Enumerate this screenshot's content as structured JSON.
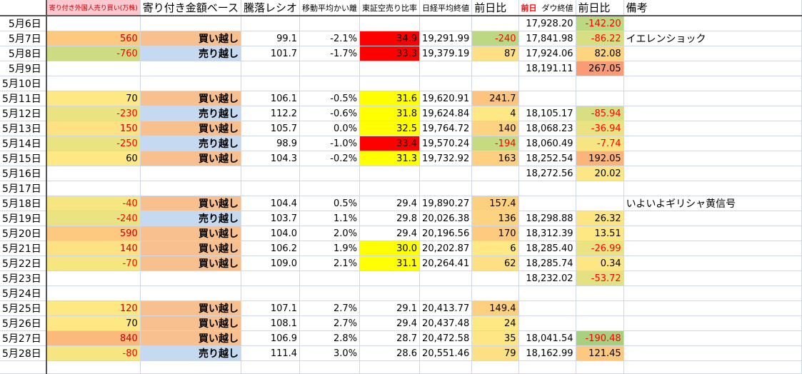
{
  "headers": {
    "a": "寄り付き外国人売り買い(万株)",
    "b": "寄り付き金額ベース",
    "c": "騰落レシオ",
    "d": "移動平均かい離",
    "e": "東証空売り比率",
    "f": "日経平均終値",
    "g": "前日比",
    "h_prefix": "前日",
    "h": "ダウ終値",
    "i": "前日比",
    "j": "備考"
  },
  "rows": [
    {
      "date": "5月6日",
      "h": "17,928.20",
      "i": {
        "v": "-142.20",
        "bg": "#bcd882",
        "c": "#ff0000"
      }
    },
    {
      "date": "5月7日",
      "a": {
        "v": "560",
        "bg": "#fdc980",
        "c": "#c00000"
      },
      "b": {
        "v": "買い越し",
        "bg": "#f9c08f"
      },
      "c": "99.1",
      "d": "-2.1%",
      "e": {
        "v": "34.9",
        "bg": "#ff0000"
      },
      "f": "19,291.99",
      "g": {
        "v": "-240",
        "bg": "#bcd882",
        "c": "#ff0000"
      },
      "h": "17,841.98",
      "i": {
        "v": "-86.22",
        "bg": "#d8df82",
        "c": "#ff0000"
      },
      "j": "イエレンショック"
    },
    {
      "date": "5月8日",
      "a": {
        "v": "-760",
        "bg": "#cddc82",
        "c": "#ff0000"
      },
      "b": {
        "v": "売り越し",
        "bg": "#c5d9f1"
      },
      "c": "101.7",
      "d": "-1.7%",
      "e": {
        "v": "33.3",
        "bg": "#ff0000"
      },
      "f": "19,379.19",
      "g": {
        "v": "87",
        "bg": "#fde083"
      },
      "h": "17,924.06",
      "i": {
        "v": "82.08",
        "bg": "#fdd581"
      }
    },
    {
      "date": "5月9日",
      "h": "18,191.11",
      "i": {
        "v": "267.05",
        "bg": "#f99c76"
      }
    },
    {
      "date": "5月10日"
    },
    {
      "date": "5月11日",
      "a": {
        "v": "70",
        "bg": "#fde883",
        "c": "#000"
      },
      "b": {
        "v": "買い越し",
        "bg": "#f9c08f"
      },
      "c": "106.1",
      "d": "-0.5%",
      "e": {
        "v": "31.6",
        "bg": "#ffff00"
      },
      "f": "19,620.91",
      "g": {
        "v": "241.7",
        "bg": "#fdc47f"
      }
    },
    {
      "date": "5月12日",
      "a": {
        "v": "-230",
        "bg": "#eae381",
        "c": "#ff0000"
      },
      "b": {
        "v": "売り越し",
        "bg": "#c5d9f1"
      },
      "c": "112.2",
      "d": "-0.6%",
      "e": {
        "v": "31.8",
        "bg": "#ffff00"
      },
      "f": "19,624.84",
      "g": {
        "v": "4",
        "bg": "#fde883"
      },
      "h": "18,105.17",
      "i": {
        "v": "-85.94",
        "bg": "#d8df82",
        "c": "#ff0000"
      }
    },
    {
      "date": "5月13日",
      "a": {
        "v": "150",
        "bg": "#fde283",
        "c": "#c00000"
      },
      "b": {
        "v": "買い越し",
        "bg": "#f9c08f"
      },
      "c": "105.7",
      "d": "0.0%",
      "e": {
        "v": "32.5",
        "bg": "#ffff00"
      },
      "f": "19,764.72",
      "g": {
        "v": "140",
        "bg": "#fdd381"
      },
      "h": "18,068.23",
      "i": {
        "v": "-36.94",
        "bg": "#ebe282",
        "c": "#ff0000"
      }
    },
    {
      "date": "5月14日",
      "a": {
        "v": "-250",
        "bg": "#eae381",
        "c": "#ff0000"
      },
      "b": {
        "v": "売り越し",
        "bg": "#c5d9f1"
      },
      "c": "98.9",
      "d": "-1.0%",
      "e": {
        "v": "33.4",
        "bg": "#ff0000"
      },
      "f": "19,570.24",
      "g": {
        "v": "-194",
        "bg": "#c6da82",
        "c": "#ff0000"
      },
      "h": "18,060.49",
      "i": {
        "v": "-7.74",
        "bg": "#f7e583",
        "c": "#ff0000"
      }
    },
    {
      "date": "5月15日",
      "a": {
        "v": "60",
        "bg": "#fde883",
        "c": "#000"
      },
      "b": {
        "v": "買い越し",
        "bg": "#f9c08f"
      },
      "c": "104.3",
      "d": "-0.2%",
      "e": {
        "v": "31.3",
        "bg": "#ffff00"
      },
      "f": "19,732.92",
      "g": {
        "v": "163",
        "bg": "#fdcf80"
      },
      "h": "18,252.54",
      "i": {
        "v": "192.05",
        "bg": "#fbb57a"
      }
    },
    {
      "date": "5月16日",
      "h": "18,272.56",
      "i": {
        "v": "20.02",
        "bg": "#fde784"
      }
    },
    {
      "date": "5月17日"
    },
    {
      "date": "5月18日",
      "a": {
        "v": "-40",
        "bg": "#f6e682",
        "c": "#ff0000"
      },
      "b": {
        "v": "買い越し",
        "bg": "#f9c08f"
      },
      "c": "104.4",
      "d": "0.5%",
      "e": {
        "v": "29.4"
      },
      "f": "19,890.27",
      "g": {
        "v": "157.4",
        "bg": "#fdd07f"
      },
      "j": "いよいよギリシャ黄信号"
    },
    {
      "date": "5月19日",
      "a": {
        "v": "-240",
        "bg": "#eae381",
        "c": "#ff0000"
      },
      "b": {
        "v": "売り越し",
        "bg": "#c5d9f1"
      },
      "c": "103.7",
      "d": "1.1%",
      "e": {
        "v": "29.8"
      },
      "f": "20,026.38",
      "g": {
        "v": "136",
        "bg": "#fdd381"
      },
      "h": "18,298.88",
      "i": {
        "v": "26.32",
        "bg": "#fde583"
      }
    },
    {
      "date": "5月20日",
      "a": {
        "v": "590",
        "bg": "#fdc980",
        "c": "#c00000"
      },
      "b": {
        "v": "買い越し",
        "bg": "#f9c08f"
      },
      "c": "104.0",
      "d": "2.0%",
      "e": {
        "v": "29.4"
      },
      "f": "20,196.56",
      "g": {
        "v": "170",
        "bg": "#fdcb80"
      },
      "h": "18,312.39",
      "i": {
        "v": "13.51",
        "bg": "#fde883"
      }
    },
    {
      "date": "5月21日",
      "a": {
        "v": "140",
        "bg": "#fde283",
        "c": "#c00000"
      },
      "b": {
        "v": "買い越し",
        "bg": "#f9c08f"
      },
      "c": "106.2",
      "d": "1.9%",
      "e": {
        "v": "30.0",
        "bg": "#ffff00"
      },
      "f": "20,202.87",
      "g": {
        "v": "6",
        "bg": "#fde883"
      },
      "h": "18,285.40",
      "i": {
        "v": "-26.99",
        "bg": "#ebe282",
        "c": "#ff0000"
      }
    },
    {
      "date": "5月22日",
      "a": {
        "v": "-70",
        "bg": "#f6e682",
        "c": "#ff0000"
      },
      "b": {
        "v": "買い越し",
        "bg": "#f9c08f"
      },
      "c": "109.0",
      "d": "2.1%",
      "e": {
        "v": "31.1",
        "bg": "#ffff00"
      },
      "f": "20,264.41",
      "g": {
        "v": "62",
        "bg": "#fde083"
      },
      "h": "18,285.74",
      "i": {
        "v": "0.34",
        "bg": "#fde784"
      }
    },
    {
      "date": "5月23日",
      "h": "18,232.02",
      "i": {
        "v": "-53.72",
        "bg": "#e3e182",
        "c": "#ff0000"
      }
    },
    {
      "date": "5月24日"
    },
    {
      "date": "5月25日",
      "a": {
        "v": "120",
        "bg": "#fde883",
        "c": "#c00000"
      },
      "b": {
        "v": "買い越し",
        "bg": "#f9c08f"
      },
      "c": "107.1",
      "d": "2.7%",
      "e": {
        "v": "29.1"
      },
      "f": "20,413.77",
      "g": {
        "v": "149.4",
        "bg": "#fdd07f"
      }
    },
    {
      "date": "5月26日",
      "a": {
        "v": "70",
        "bg": "#fde883",
        "c": "#000"
      },
      "b": {
        "v": "買い越し",
        "bg": "#f9c08f"
      },
      "c": "108.1",
      "d": "2.7%",
      "e": {
        "v": "29.4"
      },
      "f": "20,437.48",
      "g": {
        "v": "24",
        "bg": "#fde883"
      }
    },
    {
      "date": "5月27日",
      "a": {
        "v": "840",
        "bg": "#fbb97b",
        "c": "#c00000"
      },
      "b": {
        "v": "買い越し",
        "bg": "#f9c08f"
      },
      "c": "106.9",
      "d": "2.8%",
      "e": {
        "v": "28.7"
      },
      "f": "20,472.58",
      "g": {
        "v": "35",
        "bg": "#fde683"
      },
      "h": "18,041.54",
      "i": {
        "v": "-190.48",
        "bg": "#a9d07e",
        "c": "#ff0000"
      }
    },
    {
      "date": "5月28日",
      "a": {
        "v": "-80",
        "bg": "#f6e682",
        "c": "#ff0000"
      },
      "b": {
        "v": "売り越し",
        "bg": "#c5d9f1"
      },
      "c": "111.4",
      "d": "3.0%",
      "e": {
        "v": "28.6"
      },
      "f": "20,551.46",
      "g": {
        "v": "79",
        "bg": "#fde083"
      },
      "h": "18,162.99",
      "i": {
        "v": "121.45",
        "bg": "#fdc880"
      }
    }
  ]
}
